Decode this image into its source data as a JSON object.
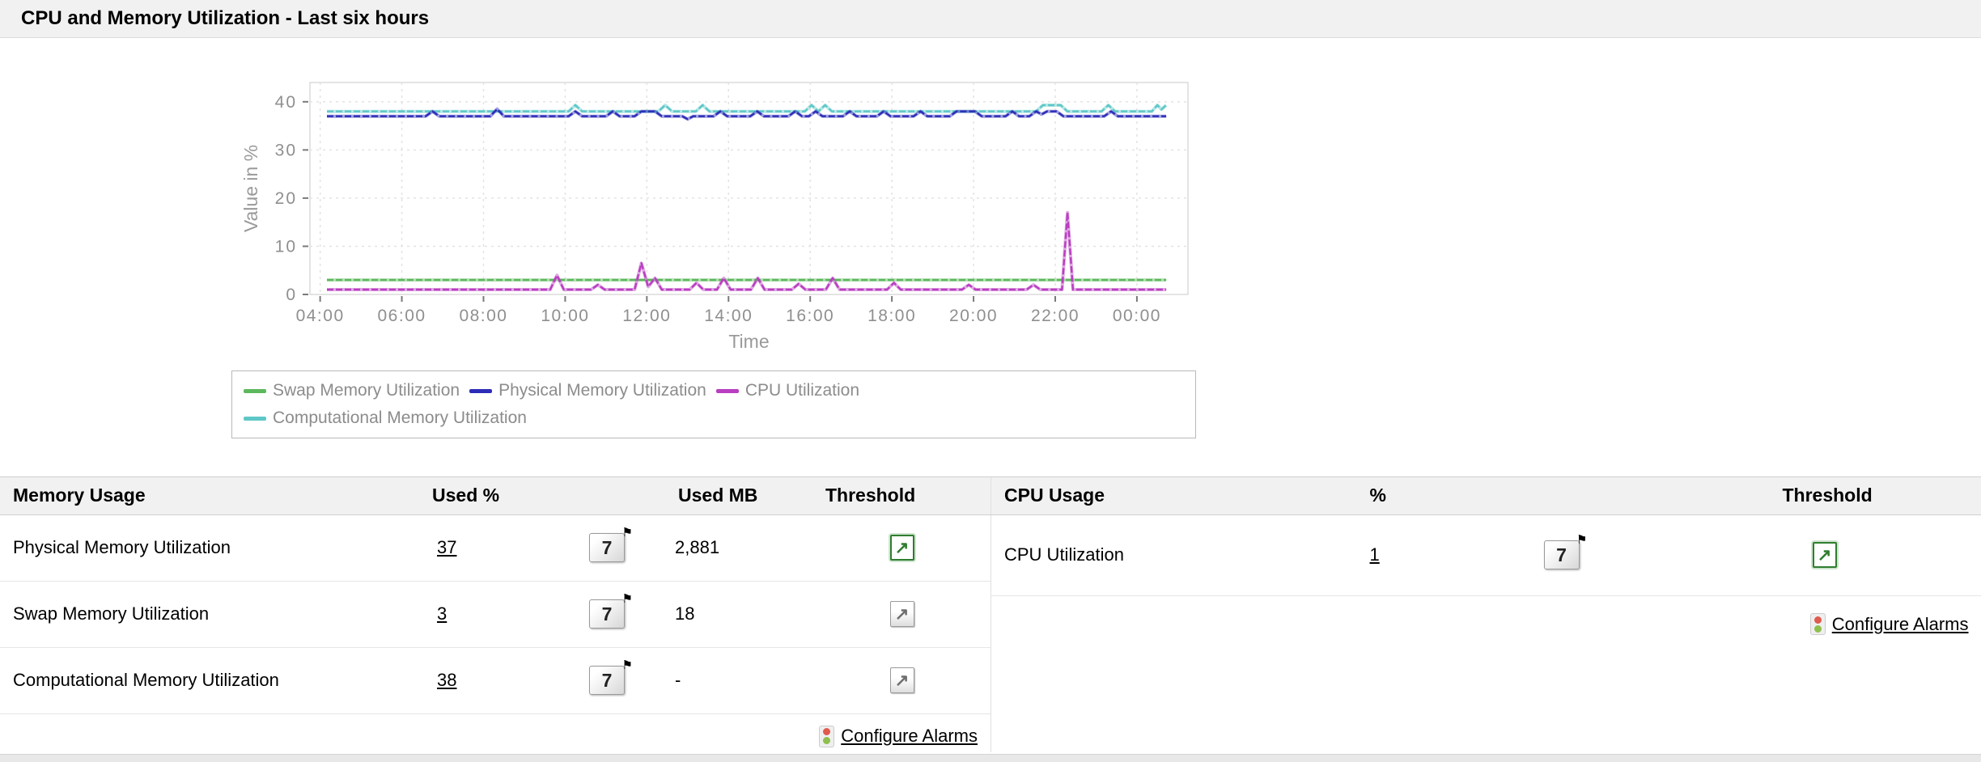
{
  "title": "CPU and Memory Utilization - Last six hours",
  "chart_data": {
    "type": "line",
    "xlabel": "Time",
    "ylabel": "Value in %",
    "x_domain": [
      -15,
      1275
    ],
    "y_domain": [
      0,
      44
    ],
    "y_ticks": [
      0,
      10,
      20,
      30,
      40
    ],
    "x_tick_minutes": [
      0,
      120,
      240,
      360,
      480,
      600,
      720,
      840,
      960,
      1080,
      1200
    ],
    "x_tick_labels": [
      "04:00",
      "06:00",
      "08:00",
      "10:00",
      "12:00",
      "14:00",
      "16:00",
      "18:00",
      "20:00",
      "22:00",
      "00:00"
    ],
    "grid": true,
    "legend_position": "bottom",
    "series": [
      {
        "name": "Swap Memory Utilization",
        "color": "#5cb85c",
        "points": [
          [
            10,
            3
          ],
          [
            1243,
            3
          ]
        ]
      },
      {
        "name": "Computational Memory Utilization",
        "color": "#5ec7c7",
        "points": [
          [
            10,
            38
          ],
          [
            365,
            38
          ],
          [
            375,
            39.3
          ],
          [
            385,
            38
          ],
          [
            497,
            38
          ],
          [
            507,
            39.3
          ],
          [
            517,
            38
          ],
          [
            552,
            38
          ],
          [
            562,
            39.3
          ],
          [
            572,
            38
          ],
          [
            712,
            38
          ],
          [
            722,
            39.3
          ],
          [
            732,
            38
          ],
          [
            742,
            39.3
          ],
          [
            752,
            38
          ],
          [
            1052,
            38
          ],
          [
            1062,
            39.3
          ],
          [
            1088,
            39.3
          ],
          [
            1098,
            38
          ],
          [
            1148,
            38
          ],
          [
            1158,
            39.3
          ],
          [
            1168,
            38
          ],
          [
            1222,
            38
          ],
          [
            1230,
            39.3
          ],
          [
            1236,
            38.4
          ],
          [
            1243,
            39.3
          ]
        ]
      },
      {
        "name": "Physical Memory Utilization",
        "color": "#2d2db8",
        "points": [
          [
            10,
            37
          ],
          [
            155,
            37
          ],
          [
            165,
            38
          ],
          [
            175,
            37
          ],
          [
            250,
            37
          ],
          [
            260,
            38.5
          ],
          [
            270,
            37
          ],
          [
            365,
            37
          ],
          [
            375,
            38
          ],
          [
            385,
            37
          ],
          [
            420,
            37
          ],
          [
            430,
            38
          ],
          [
            440,
            37
          ],
          [
            462,
            37
          ],
          [
            472,
            38
          ],
          [
            492,
            38
          ],
          [
            502,
            37
          ],
          [
            532,
            37
          ],
          [
            540,
            36.4
          ],
          [
            548,
            37
          ],
          [
            578,
            37
          ],
          [
            588,
            38
          ],
          [
            598,
            37
          ],
          [
            632,
            37
          ],
          [
            642,
            38
          ],
          [
            652,
            37
          ],
          [
            688,
            37
          ],
          [
            698,
            38
          ],
          [
            708,
            37
          ],
          [
            718,
            37
          ],
          [
            728,
            38
          ],
          [
            738,
            37
          ],
          [
            768,
            37
          ],
          [
            778,
            38
          ],
          [
            788,
            37
          ],
          [
            818,
            37
          ],
          [
            828,
            38
          ],
          [
            838,
            37
          ],
          [
            872,
            37
          ],
          [
            882,
            38
          ],
          [
            892,
            37
          ],
          [
            925,
            37
          ],
          [
            935,
            38
          ],
          [
            962,
            38
          ],
          [
            972,
            37
          ],
          [
            1007,
            37
          ],
          [
            1017,
            38
          ],
          [
            1027,
            37
          ],
          [
            1042,
            37
          ],
          [
            1052,
            38
          ],
          [
            1060,
            37.4
          ],
          [
            1068,
            38
          ],
          [
            1082,
            38
          ],
          [
            1092,
            37
          ],
          [
            1152,
            37
          ],
          [
            1162,
            38
          ],
          [
            1172,
            37
          ],
          [
            1243,
            37
          ]
        ]
      },
      {
        "name": "CPU Utilization",
        "color": "#b93ec1",
        "points": [
          [
            10,
            1
          ],
          [
            338,
            1
          ],
          [
            348,
            4
          ],
          [
            358,
            1
          ],
          [
            398,
            1
          ],
          [
            408,
            2
          ],
          [
            418,
            1
          ],
          [
            462,
            1
          ],
          [
            472,
            6.5
          ],
          [
            482,
            1.6
          ],
          [
            492,
            3.4
          ],
          [
            502,
            1
          ],
          [
            543,
            1
          ],
          [
            553,
            2.4
          ],
          [
            563,
            1
          ],
          [
            583,
            1
          ],
          [
            593,
            3.4
          ],
          [
            603,
            1
          ],
          [
            633,
            1
          ],
          [
            643,
            3.4
          ],
          [
            653,
            1
          ],
          [
            693,
            1
          ],
          [
            703,
            2.2
          ],
          [
            713,
            1
          ],
          [
            743,
            1
          ],
          [
            753,
            3.4
          ],
          [
            763,
            1
          ],
          [
            833,
            1
          ],
          [
            843,
            2.4
          ],
          [
            853,
            1
          ],
          [
            943,
            1
          ],
          [
            953,
            2
          ],
          [
            963,
            1
          ],
          [
            1038,
            1
          ],
          [
            1048,
            2
          ],
          [
            1058,
            1
          ],
          [
            1090,
            1
          ],
          [
            1098,
            17
          ],
          [
            1106,
            1
          ],
          [
            1243,
            1
          ]
        ]
      }
    ],
    "legend_rows": [
      [
        "Swap Memory Utilization",
        "Physical Memory Utilization",
        "CPU Utilization"
      ],
      [
        "Computational Memory Utilization"
      ]
    ]
  },
  "memory_table": {
    "headers": [
      "Memory Usage",
      "Used %",
      "",
      "Used MB",
      "Threshold"
    ],
    "rows": [
      {
        "label": "Physical Memory Utilization",
        "used_pct": "37",
        "used_mb": "2,881",
        "threshold_state": "green"
      },
      {
        "label": "Swap Memory Utilization",
        "used_pct": "3",
        "used_mb": "18",
        "threshold_state": "gray"
      },
      {
        "label": "Computational Memory Utilization",
        "used_pct": "38",
        "used_mb": "-",
        "threshold_state": "gray"
      }
    ],
    "configure_alarms_label": "Configure Alarms"
  },
  "cpu_table": {
    "headers": [
      "CPU Usage",
      "%",
      "",
      "Threshold"
    ],
    "rows": [
      {
        "label": "CPU Utilization",
        "used_pct": "1",
        "threshold_state": "green"
      }
    ],
    "configure_alarms_label": "Configure Alarms"
  },
  "icons": {
    "seven_day_report": "7",
    "flag": "⚑",
    "threshold_arrow": "↗"
  },
  "colors": {
    "threshold_green": "#2f7d2f",
    "threshold_gray": "#6e6e6e",
    "traffic_red": "#e05a4e",
    "traffic_green": "#8fbf4d",
    "axis_text": "#8f8f8f",
    "header_bg": "#f1f1f1"
  }
}
